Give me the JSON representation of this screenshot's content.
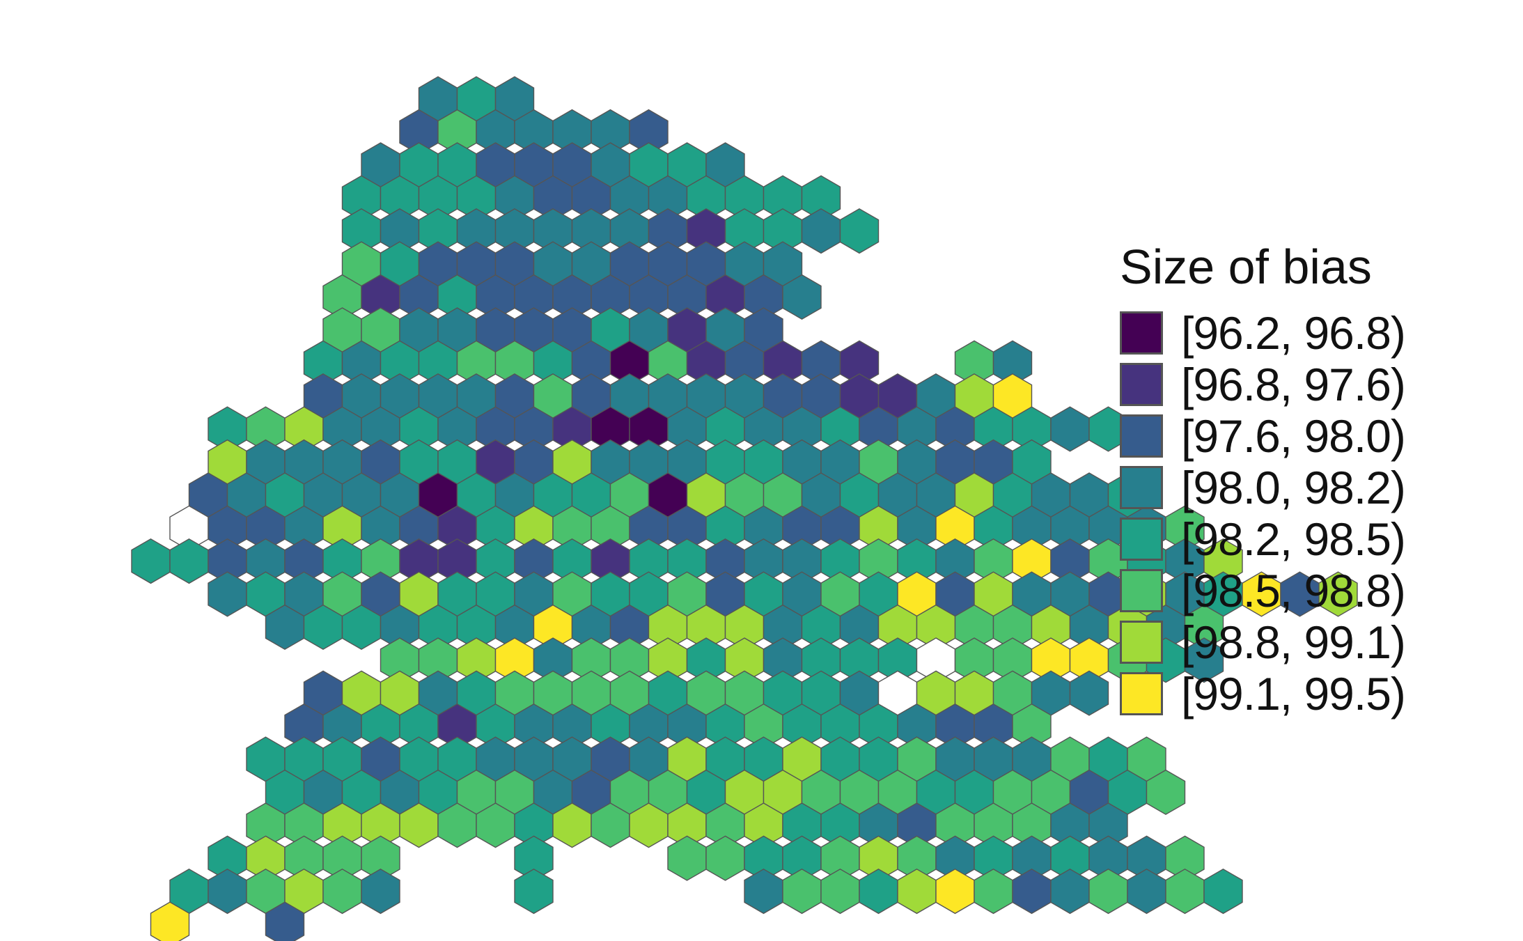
{
  "legend": {
    "title": "Size of bias",
    "classes": [
      {
        "label": "[96.2, 96.8)",
        "color": "#440154"
      },
      {
        "label": "[96.8, 97.6)",
        "color": "#46337E"
      },
      {
        "label": "[97.6, 98.0)",
        "color": "#365C8D"
      },
      {
        "label": "[98.0, 98.2)",
        "color": "#277F8E"
      },
      {
        "label": "[98.2, 98.5)",
        "color": "#1FA187"
      },
      {
        "label": "[98.5, 98.8)",
        "color": "#4AC16D"
      },
      {
        "label": "[98.8, 99.1)",
        "color": "#A0DA39"
      },
      {
        "label": "[99.1, 99.5)",
        "color": "#FDE725"
      }
    ],
    "missing_color": "#FFFFFF"
  },
  "hex_grid": {
    "rows": [
      {
        "start": 16,
        "classes": "343"
      },
      {
        "start": 15,
        "classes": "2533332"
      },
      {
        "start": 13,
        "classes": "3442223443"
      },
      {
        "start": 12,
        "classes": "4444322334444"
      },
      {
        "start": 12,
        "classes": "43433333214434"
      },
      {
        "start": 12,
        "classes": "542223322233"
      },
      {
        "start": 11,
        "classes": "5124222222123"
      },
      {
        "start": 11,
        "classes": "553322243132"
      },
      {
        "start": 10,
        "classes": "434455420512121  53"
      },
      {
        "start": 10,
        "classes": "2333325233332211367"
      },
      {
        "start": 5,
        "classes": "456334322100343342324434"
      },
      {
        "start": 5,
        "classes": "6333244126333443353224"
      },
      {
        "start": 4,
        "classes": "2343330434450655343364334"
      },
      {
        "start": 3,
        "classes": "x22363214655224322637433335"
      },
      {
        "start": 1,
        "classes": "44232451142414423345435725436"
      },
      {
        "start": 5,
        "classes": "343526443544524354726332634726"
      },
      {
        "start": 8,
        "classes": "3443443732666343665563635"
      },
      {
        "start": 14,
        "classes": "55673556463444x5577543"
      },
      {
        "start": 10,
        "classes": "266345555455443x66533"
      },
      {
        "start": 9,
        "classes": "23441433433454443225"
      },
      {
        "start": 7,
        "classes": "444244333236446445333545"
      },
      {
        "start": 8,
        "classes": "434345532554665554455245"
      },
      {
        "start": 7,
        "classes": "55666554656656443255533"
      },
      {
        "start": 5,
        "classes": "46555   4   55445653434335"
      },
      {
        "start": 3,
        "classes": "435653   4     3554675235354"
      },
      {
        "start": 2,
        "classes": "7  2"
      }
    ]
  }
}
